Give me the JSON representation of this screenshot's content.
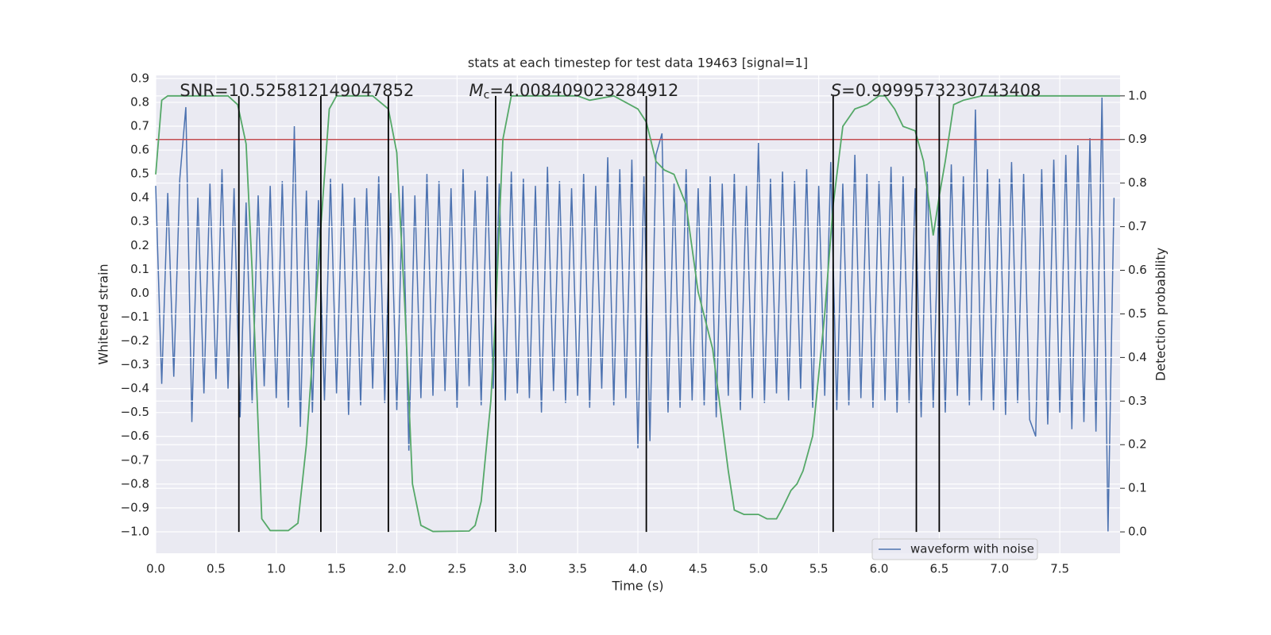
{
  "chart_data": {
    "type": "line",
    "title": "stats at each timestep for test data 19463 [signal=1]",
    "xlabel": "Time (s)",
    "ylabel": "Whitened strain",
    "y2label": "Detection probability",
    "xlim": [
      0,
      8
    ],
    "ylim": [
      -1.09,
      0.913
    ],
    "y2lim": [
      -0.049,
      1.047
    ],
    "xticks": [
      {
        "value": 0,
        "label": "0.0"
      },
      {
        "value": 0.5,
        "label": "0.5"
      },
      {
        "value": 1,
        "label": "1.0"
      },
      {
        "value": 1.5,
        "label": "1.5"
      },
      {
        "value": 2,
        "label": "2.0"
      },
      {
        "value": 2.5,
        "label": "2.5"
      },
      {
        "value": 3,
        "label": "3.0"
      },
      {
        "value": 3.5,
        "label": "3.5"
      },
      {
        "value": 4,
        "label": "4.0"
      },
      {
        "value": 4.5,
        "label": "4.5"
      },
      {
        "value": 5,
        "label": "5.0"
      },
      {
        "value": 5.5,
        "label": "5.5"
      },
      {
        "value": 6,
        "label": "6.0"
      },
      {
        "value": 6.5,
        "label": "6.5"
      },
      {
        "value": 7,
        "label": "7.0"
      },
      {
        "value": 7.5,
        "label": "7.5"
      }
    ],
    "yticks": [
      {
        "value": -1,
        "label": "−1.0"
      },
      {
        "value": -0.9,
        "label": "−0.9"
      },
      {
        "value": -0.8,
        "label": "−0.8"
      },
      {
        "value": -0.7,
        "label": "−0.7"
      },
      {
        "value": -0.6,
        "label": "−0.6"
      },
      {
        "value": -0.5,
        "label": "−0.5"
      },
      {
        "value": -0.4,
        "label": "−0.4"
      },
      {
        "value": -0.3,
        "label": "−0.3"
      },
      {
        "value": -0.2,
        "label": "−0.2"
      },
      {
        "value": -0.1,
        "label": "−0.1"
      },
      {
        "value": 0,
        "label": "0.0"
      },
      {
        "value": 0.1,
        "label": "0.1"
      },
      {
        "value": 0.2,
        "label": "0.2"
      },
      {
        "value": 0.3,
        "label": "0.3"
      },
      {
        "value": 0.4,
        "label": "0.4"
      },
      {
        "value": 0.5,
        "label": "0.5"
      },
      {
        "value": 0.6,
        "label": "0.6"
      },
      {
        "value": 0.7,
        "label": "0.7"
      },
      {
        "value": 0.8,
        "label": "0.8"
      },
      {
        "value": 0.9,
        "label": "0.9"
      }
    ],
    "y2ticks": [
      {
        "value": 0,
        "label": "0.0"
      },
      {
        "value": 0.1,
        "label": "0.1"
      },
      {
        "value": 0.2,
        "label": "0.2"
      },
      {
        "value": 0.3,
        "label": "0.3"
      },
      {
        "value": 0.4,
        "label": "0.4"
      },
      {
        "value": 0.5,
        "label": "0.5"
      },
      {
        "value": 0.6,
        "label": "0.6"
      },
      {
        "value": 0.7,
        "label": "0.7"
      },
      {
        "value": 0.8,
        "label": "0.8"
      },
      {
        "value": 0.9,
        "label": "0.9"
      },
      {
        "value": 1,
        "label": "1.0"
      }
    ],
    "grid": true,
    "legend": "lower right",
    "series": [
      {
        "name": "waveform with noise",
        "color": "#4c72b0",
        "x": [
          0,
          0.05,
          0.1,
          0.15,
          0.2,
          0.25,
          0.3,
          0.35,
          0.4,
          0.45,
          0.5,
          0.55,
          0.6,
          0.65,
          0.7,
          0.75,
          0.8,
          0.85,
          0.9,
          0.95,
          1,
          1.05,
          1.1,
          1.15,
          1.2,
          1.25,
          1.3,
          1.35,
          1.4,
          1.45,
          1.5,
          1.55,
          1.6,
          1.65,
          1.7,
          1.75,
          1.8,
          1.85,
          1.9,
          1.95,
          2,
          2.05,
          2.1,
          2.15,
          2.2,
          2.25,
          2.3,
          2.35,
          2.4,
          2.45,
          2.5,
          2.55,
          2.6,
          2.65,
          2.7,
          2.75,
          2.8,
          2.85,
          2.9,
          2.95,
          3,
          3.05,
          3.1,
          3.15,
          3.2,
          3.25,
          3.3,
          3.35,
          3.4,
          3.45,
          3.5,
          3.55,
          3.6,
          3.65,
          3.7,
          3.75,
          3.8,
          3.85,
          3.9,
          3.95,
          4,
          4.05,
          4.1,
          4.15,
          4.2,
          4.25,
          4.3,
          4.35,
          4.4,
          4.45,
          4.5,
          4.55,
          4.6,
          4.65,
          4.7,
          4.75,
          4.8,
          4.85,
          4.9,
          4.95,
          5,
          5.05,
          5.1,
          5.15,
          5.2,
          5.25,
          5.3,
          5.35,
          5.4,
          5.45,
          5.5,
          5.55,
          5.6,
          5.65,
          5.7,
          5.75,
          5.8,
          5.85,
          5.9,
          5.95,
          6,
          6.05,
          6.1,
          6.15,
          6.2,
          6.25,
          6.3,
          6.35,
          6.4,
          6.45,
          6.5,
          6.55,
          6.6,
          6.65,
          6.7,
          6.75,
          6.8,
          6.85,
          6.9,
          6.95,
          7,
          7.05,
          7.1,
          7.15,
          7.2,
          7.25,
          7.3,
          7.35,
          7.4,
          7.45,
          7.5,
          7.55,
          7.6,
          7.65,
          7.7,
          7.75,
          7.8,
          7.85,
          7.9,
          7.95
        ],
        "values": [
          0.45,
          -0.38,
          0.42,
          -0.35,
          0.48,
          0.78,
          -0.54,
          0.4,
          -0.42,
          0.46,
          -0.36,
          0.52,
          -0.4,
          0.44,
          -0.52,
          0.38,
          -0.46,
          0.41,
          -0.39,
          0.45,
          -0.44,
          0.47,
          -0.48,
          0.7,
          -0.56,
          0.43,
          -0.5,
          0.39,
          -0.45,
          0.48,
          -0.42,
          0.46,
          -0.51,
          0.4,
          -0.47,
          0.44,
          -0.4,
          0.49,
          -0.46,
          0.42,
          -0.49,
          0.45,
          -0.66,
          0.41,
          -0.44,
          0.5,
          -0.43,
          0.47,
          -0.41,
          0.44,
          -0.48,
          0.52,
          -0.39,
          0.43,
          -0.47,
          0.49,
          -0.4,
          0.46,
          -0.45,
          0.51,
          -0.42,
          0.48,
          -0.44,
          0.45,
          -0.5,
          0.53,
          -0.41,
          0.47,
          -0.46,
          0.44,
          -0.43,
          0.5,
          -0.48,
          0.45,
          -0.4,
          0.57,
          -0.47,
          0.52,
          -0.44,
          0.56,
          -0.65,
          0.49,
          -0.62,
          0.58,
          0.67,
          -0.5,
          0.46,
          -0.48,
          0.52,
          -0.45,
          0.44,
          -0.47,
          0.49,
          -0.52,
          0.46,
          -0.43,
          0.5,
          -0.49,
          0.45,
          -0.44,
          0.63,
          -0.46,
          0.48,
          -0.42,
          0.51,
          -0.45,
          0.47,
          -0.4,
          0.52,
          -0.48,
          0.45,
          -0.43,
          0.55,
          -0.49,
          0.46,
          -0.47,
          0.58,
          -0.44,
          0.5,
          -0.48,
          0.47,
          -0.45,
          0.53,
          -0.5,
          0.49,
          -0.46,
          0.44,
          -0.52,
          0.51,
          -0.48,
          0.46,
          -0.5,
          0.54,
          -0.43,
          0.49,
          -0.47,
          0.77,
          -0.45,
          0.52,
          -0.49,
          0.48,
          -0.51,
          0.55,
          -0.46,
          0.5,
          -0.53,
          -0.6,
          0.52,
          -0.55,
          0.56,
          -0.5,
          0.58,
          -0.57,
          0.62,
          -0.54,
          0.65,
          -0.58,
          0.82,
          -1.0,
          0.4
        ]
      },
      {
        "color": "#55a868",
        "axis": "y2",
        "x": [
          0,
          0.05,
          0.1,
          0.6,
          0.68,
          0.75,
          0.8,
          0.88,
          0.95,
          1.1,
          1.18,
          1.25,
          1.3,
          1.37,
          1.44,
          1.5,
          1.8,
          1.93,
          2,
          2.07,
          2.13,
          2.2,
          2.3,
          2.6,
          2.65,
          2.7,
          2.78,
          2.82,
          2.88,
          2.95,
          3.5,
          3.6,
          3.8,
          4,
          4.07,
          4.15,
          4.22,
          4.3,
          4.4,
          4.5,
          4.62,
          4.75,
          4.8,
          4.88,
          5,
          5.07,
          5.15,
          5.2,
          5.27,
          5.32,
          5.37,
          5.45,
          5.55,
          5.62,
          5.7,
          5.8,
          5.9,
          6,
          6.05,
          6.13,
          6.2,
          6.3,
          6.37,
          6.45,
          6.5,
          6.55,
          6.62,
          6.7,
          6.85,
          7.5,
          8
        ],
        "values": [
          0.82,
          0.99,
          1.0,
          1.0,
          0.98,
          0.89,
          0.6,
          0.03,
          0.003,
          0.003,
          0.02,
          0.2,
          0.4,
          0.7,
          0.97,
          1.0,
          1.0,
          0.97,
          0.87,
          0.5,
          0.11,
          0.015,
          0.001,
          0.002,
          0.015,
          0.07,
          0.3,
          0.5,
          0.9,
          1.0,
          1.0,
          0.99,
          1.0,
          0.97,
          0.94,
          0.85,
          0.83,
          0.82,
          0.75,
          0.55,
          0.42,
          0.14,
          0.05,
          0.04,
          0.04,
          0.03,
          0.03,
          0.055,
          0.095,
          0.11,
          0.14,
          0.22,
          0.5,
          0.75,
          0.93,
          0.97,
          0.98,
          1.0,
          1.0,
          0.97,
          0.93,
          0.92,
          0.85,
          0.68,
          0.77,
          0.85,
          0.98,
          0.99,
          1.0,
          1.0,
          1.0
        ]
      }
    ],
    "threshold": {
      "value": 0.9,
      "axis": "y2",
      "color": "#c44e52"
    },
    "vertical_lines": {
      "x": [
        0.69,
        1.37,
        1.93,
        2.82,
        4.07,
        5.62,
        6.31,
        6.5
      ],
      "ymin": 0,
      "ymax": 1,
      "axis": "y2",
      "color": "#000000"
    },
    "annotations": [
      {
        "symbol": "SNR",
        "value_text": "=10.525812149047852",
        "x": 0.2
      },
      {
        "symbol": "M",
        "subscript": "c",
        "value_text": "=4.008409023284912",
        "x": 2.6
      },
      {
        "symbol": "S",
        "value_text": "=0.9999573230743408",
        "x": 5.6
      }
    ]
  }
}
